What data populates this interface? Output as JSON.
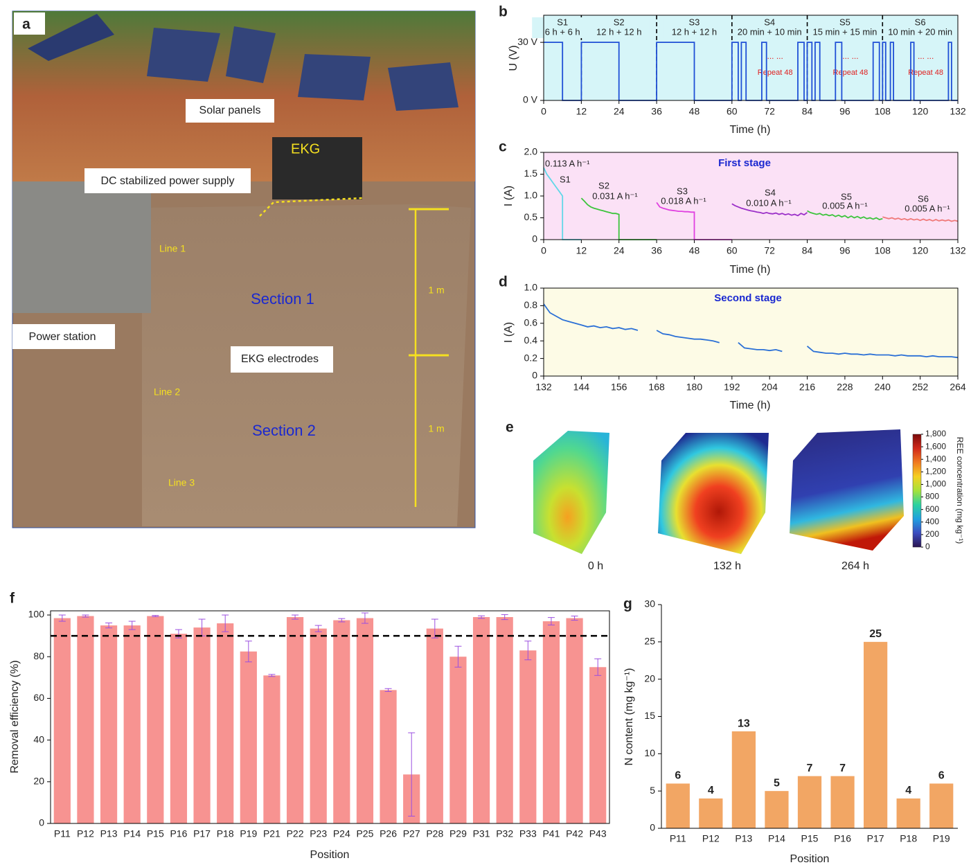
{
  "photo": {
    "panel_label": "a",
    "labels": [
      "Solar panels",
      "EKG",
      "DC stabilized power supply",
      "Line 1",
      "Section 1",
      "1 m",
      "Power station",
      "EKG electrodes",
      "Line 2",
      "Section 2",
      "1 m",
      "Line 3"
    ]
  },
  "chart_data": [
    {
      "type": "line",
      "panel_label": "b",
      "xlabel": "Time (h)",
      "ylabel": "U (V)",
      "background": "#d6f5f8",
      "xlim": [
        0,
        132
      ],
      "xticks": [
        0,
        12,
        24,
        36,
        48,
        60,
        72,
        84,
        96,
        108,
        120,
        132
      ],
      "ylim": [
        0,
        44
      ],
      "yticks": [
        {
          "value": 0,
          "label": "0 V"
        },
        {
          "value": 30,
          "label": "30 V"
        }
      ],
      "dividers": [
        12,
        36,
        60,
        84,
        108
      ],
      "segments": [
        {
          "name": "S1",
          "duration": "6 h + 6 h"
        },
        {
          "name": "S2",
          "duration": "12 h + 12 h"
        },
        {
          "name": "S3",
          "duration": "12 h + 12 h"
        },
        {
          "name": "S4",
          "duration": "20 min + 10 min"
        },
        {
          "name": "S5",
          "duration": "15 min + 15 min"
        },
        {
          "name": "S6",
          "duration": "10 min + 20 min"
        }
      ],
      "repeat_notes": [
        {
          "dots": "... ...",
          "text": "Repeat 48"
        },
        {
          "dots": "... ...",
          "text": "Repeat 48"
        },
        {
          "dots": "... ...",
          "text": "Repeat 48"
        }
      ],
      "series": [
        {
          "color": "#1f4fd6",
          "x": [
            0,
            6,
            6,
            12,
            12,
            24,
            24,
            36,
            36,
            48,
            48,
            60,
            60,
            62,
            62,
            63,
            63,
            64.5,
            64.5,
            69.5,
            69.5,
            71,
            71,
            81,
            81,
            83,
            83,
            84,
            84,
            85.5,
            85.5,
            86.5,
            86.5,
            88,
            88,
            93,
            93,
            95,
            95,
            105,
            105,
            107,
            107,
            108,
            108,
            109,
            109,
            110.5,
            110.5,
            111.5,
            111.5,
            117,
            117,
            118,
            118,
            129,
            129,
            130,
            130,
            132
          ],
          "values": [
            30,
            30,
            0,
            0,
            30,
            30,
            0,
            0,
            30,
            30,
            0,
            0,
            30,
            30,
            0,
            0,
            30,
            30,
            0,
            0,
            30,
            30,
            0,
            0,
            30,
            30,
            0,
            0,
            30,
            30,
            0,
            0,
            30,
            30,
            0,
            0,
            30,
            30,
            0,
            0,
            30,
            30,
            0,
            0,
            30,
            30,
            0,
            0,
            30,
            30,
            0,
            0,
            30,
            30,
            0,
            0,
            30,
            30,
            0,
            0
          ]
        }
      ]
    },
    {
      "type": "line",
      "panel_label": "c",
      "title": "First stage",
      "xlabel": "Time (h)",
      "ylabel": "I (A)",
      "background": "#fbe1f6",
      "xlim": [
        0,
        132
      ],
      "xticks": [
        0,
        12,
        24,
        36,
        48,
        60,
        72,
        84,
        96,
        108,
        120,
        132
      ],
      "ylim": [
        0,
        2
      ],
      "yticks": [
        0,
        0.5,
        {
          "value": 1,
          "label": "1.0"
        },
        1.5,
        {
          "value": 2,
          "label": "2.0"
        }
      ],
      "annotations": [
        "0.113 A h⁻¹",
        "S1",
        "S2",
        "0.031 A h⁻¹",
        "S3",
        "0.018 A h⁻¹",
        "S4",
        "0.010 A h⁻¹",
        "S5",
        "0.005 A h⁻¹",
        "S6",
        "0.005 A h⁻¹"
      ],
      "series": [
        {
          "color": "#5fd8e8",
          "x": [
            0,
            1,
            2,
            3,
            4,
            5,
            6,
            6,
            12
          ],
          "values": [
            1.65,
            1.5,
            1.4,
            1.3,
            1.2,
            1.1,
            1.0,
            0,
            0
          ]
        },
        {
          "color": "#3cc43c",
          "x": [
            12,
            13,
            14,
            15,
            16,
            17,
            18,
            19,
            20,
            21,
            22,
            23,
            24,
            24,
            36
          ],
          "values": [
            0.95,
            0.88,
            0.8,
            0.75,
            0.72,
            0.7,
            0.68,
            0.66,
            0.64,
            0.62,
            0.6,
            0.6,
            0.58,
            0,
            0
          ]
        },
        {
          "color": "#e040e0",
          "x": [
            36,
            37,
            38,
            39,
            40,
            41,
            42,
            43,
            44,
            45,
            46,
            47,
            48,
            48,
            60
          ],
          "values": [
            0.85,
            0.75,
            0.72,
            0.7,
            0.68,
            0.67,
            0.66,
            0.65,
            0.65,
            0.64,
            0.64,
            0.63,
            0.63,
            0,
            0
          ]
        },
        {
          "color": "#9b30c8",
          "x": [
            60,
            61,
            62,
            63,
            64,
            65,
            66,
            67,
            68,
            69,
            70,
            71,
            72,
            73,
            74,
            75,
            76,
            77,
            78,
            79,
            80,
            81,
            82,
            83,
            84
          ],
          "values": [
            0.82,
            0.78,
            0.75,
            0.72,
            0.7,
            0.68,
            0.66,
            0.65,
            0.63,
            0.62,
            0.6,
            0.62,
            0.6,
            0.59,
            0.61,
            0.58,
            0.6,
            0.57,
            0.59,
            0.56,
            0.58,
            0.55,
            0.6,
            0.57,
            0.62
          ]
        },
        {
          "color": "#3cc43c",
          "x": [
            84,
            85,
            86,
            87,
            88,
            89,
            90,
            91,
            92,
            93,
            94,
            95,
            96,
            97,
            98,
            99,
            100,
            101,
            102,
            103,
            104,
            105,
            106,
            107,
            108
          ],
          "values": [
            0.66,
            0.62,
            0.6,
            0.58,
            0.6,
            0.56,
            0.58,
            0.55,
            0.57,
            0.53,
            0.56,
            0.52,
            0.55,
            0.5,
            0.54,
            0.5,
            0.53,
            0.49,
            0.52,
            0.48,
            0.5,
            0.47,
            0.5,
            0.46,
            0.48
          ]
        },
        {
          "color": "#f07a7a",
          "x": [
            108,
            109,
            110,
            111,
            112,
            113,
            114,
            115,
            116,
            117,
            118,
            119,
            120,
            121,
            122,
            123,
            124,
            125,
            126,
            127,
            128,
            129,
            130,
            131,
            132
          ],
          "values": [
            0.52,
            0.5,
            0.48,
            0.5,
            0.47,
            0.49,
            0.46,
            0.48,
            0.45,
            0.48,
            0.45,
            0.47,
            0.44,
            0.47,
            0.44,
            0.46,
            0.43,
            0.46,
            0.43,
            0.45,
            0.43,
            0.45,
            0.42,
            0.44,
            0.42
          ]
        }
      ]
    },
    {
      "type": "line",
      "panel_label": "d",
      "title": "Second stage",
      "xlabel": "Time (h)",
      "ylabel": "I (A)",
      "background": "#fdfbe6",
      "xlim": [
        132,
        264
      ],
      "xticks": [
        132,
        144,
        156,
        168,
        180,
        192,
        204,
        216,
        228,
        240,
        252,
        264
      ],
      "ylim": [
        0,
        1
      ],
      "yticks": [
        0,
        0.2,
        0.4,
        0.6,
        0.8,
        {
          "value": 1,
          "label": "1.0"
        }
      ],
      "series": [
        {
          "color": "#2a6fd6",
          "x": [
            132,
            134,
            136,
            138,
            140,
            142,
            144,
            146,
            148,
            150,
            152,
            154,
            156,
            158,
            160,
            162,
            164,
            166,
            168,
            170,
            172,
            174,
            176,
            178,
            180,
            182,
            184,
            186,
            188,
            190,
            192,
            194,
            196,
            198,
            200,
            202,
            204,
            206,
            208,
            210,
            212,
            214,
            216,
            218,
            220,
            222,
            224,
            226,
            228,
            230,
            232,
            234,
            236,
            238,
            240,
            242,
            244,
            246,
            248,
            250,
            252,
            254,
            256,
            258,
            260,
            262,
            264
          ],
          "values": [
            0.82,
            0.72,
            0.68,
            0.64,
            0.62,
            0.6,
            0.58,
            0.56,
            0.57,
            0.55,
            0.56,
            0.54,
            0.55,
            0.53,
            0.54,
            0.52,
            null,
            null,
            0.52,
            0.48,
            0.47,
            0.45,
            0.44,
            0.43,
            0.42,
            0.42,
            0.41,
            0.4,
            0.38,
            null,
            null,
            0.38,
            0.32,
            0.31,
            0.3,
            0.3,
            0.29,
            0.3,
            0.28,
            null,
            null,
            null,
            0.34,
            0.28,
            0.27,
            0.26,
            0.26,
            0.25,
            0.26,
            0.25,
            0.25,
            0.24,
            0.25,
            0.24,
            0.24,
            0.24,
            0.23,
            0.24,
            0.23,
            0.23,
            0.23,
            0.22,
            0.23,
            0.22,
            0.22,
            0.22,
            0.21
          ]
        }
      ]
    },
    {
      "type": "colormap",
      "panel_label": "e",
      "labels": [
        "0 h",
        "132 h",
        "264 h"
      ],
      "colorbar_label": "REE concentration (mg kg⁻¹)",
      "clim": [
        0,
        1800
      ],
      "colors": [
        "#2a1450",
        "#3b4cc0",
        "#1fa0e0",
        "#2cd2a0",
        "#a6e23a",
        "#f5d020",
        "#f07a20",
        "#d0281a",
        "#7a0a0a"
      ],
      "cticks": [
        0,
        200,
        400,
        600,
        800,
        {
          "value": 1000,
          "label": "1,000"
        },
        {
          "value": 1200,
          "label": "1,200"
        },
        {
          "value": 1400,
          "label": "1,400"
        },
        {
          "value": 1600,
          "label": "1,600"
        },
        {
          "value": 1800,
          "label": "1,800"
        }
      ]
    },
    {
      "type": "bar",
      "panel_label": "f",
      "xlabel": "Position",
      "ylabel": "Removal efficiency (%)",
      "color": "#f79391",
      "error_color": "#9b4fe0",
      "reference_line": 90,
      "ylim": [
        0,
        102
      ],
      "yticks": [
        0,
        20,
        40,
        60,
        80,
        100
      ],
      "categories": [
        "P11",
        "P12",
        "P13",
        "P14",
        "P15",
        "P16",
        "P17",
        "P18",
        "P19",
        "P21",
        "P22",
        "P23",
        "P24",
        "P25",
        "P26",
        "P27",
        "P28",
        "P29",
        "P31",
        "P32",
        "P33",
        "P41",
        "P42",
        "P43"
      ],
      "values": [
        98.5,
        99.5,
        95,
        95,
        99.5,
        91,
        94,
        96,
        82.5,
        71,
        99,
        93.5,
        97.5,
        98.5,
        64,
        23.5,
        93.5,
        80,
        99,
        99,
        83,
        97,
        98.5,
        75
      ],
      "errors": [
        1.5,
        0.5,
        1.2,
        2,
        0.3,
        2,
        4,
        4,
        5,
        0.5,
        1,
        1.5,
        0.8,
        2.5,
        0.7,
        20,
        4.5,
        5,
        0.6,
        1.2,
        4.5,
        1.8,
        1,
        4
      ]
    },
    {
      "type": "bar",
      "panel_label": "g",
      "xlabel": "Position",
      "ylabel": "N content (mg kg⁻¹)",
      "color": "#f2a664",
      "data_labels": true,
      "ylim": [
        0,
        30
      ],
      "yticks": [
        0,
        5,
        10,
        15,
        20,
        25,
        30
      ],
      "categories": [
        "P11",
        "P12",
        "P13",
        "P14",
        "P15",
        "P16",
        "P17",
        "P18",
        "P19"
      ],
      "values": [
        6,
        4,
        13,
        5,
        7,
        7,
        25,
        4,
        6
      ]
    }
  ]
}
